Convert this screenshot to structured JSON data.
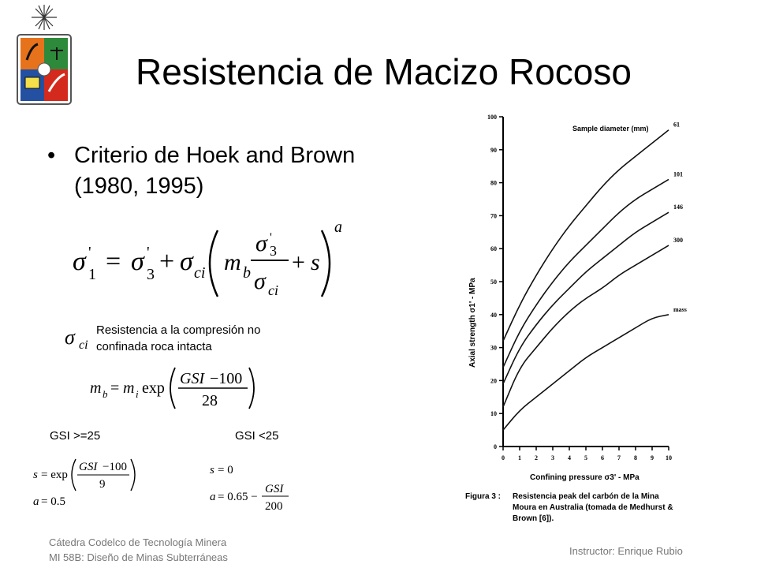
{
  "slide": {
    "title": "Resistencia de Macizo Rocoso",
    "bullet": "Criterio de Hoek and Brown (1980, 1995)",
    "sigma_ci_note_line1": "Resistencia a la compresión no",
    "sigma_ci_note_line2": "confinada roca intacta",
    "gsi_ge_25": "GSI >=25",
    "gsi_lt_25": "GSI <25",
    "footer_left_line1": "Cátedra Codelco de Tecnología Minera",
    "footer_left_line2": "MI 58B: Diseño de Minas Subterráneas",
    "footer_right": "Instructor: Enrique Rubio"
  },
  "chart_data": {
    "type": "line",
    "xlabel": "Confining pressure σ3' - MPa",
    "ylabel": "Axial strength σ1' - MPa",
    "legend_title": "Sample diameter (mm)",
    "xlim": [
      0,
      10
    ],
    "ylim": [
      0,
      100
    ],
    "x_ticks": [
      "0",
      "1",
      "2",
      "3",
      "4",
      "5",
      "6",
      "7",
      "8",
      "9",
      "10"
    ],
    "y_ticks": [
      "0",
      "10",
      "20",
      "30",
      "40",
      "50",
      "60",
      "70",
      "80",
      "90",
      "100"
    ],
    "x": [
      0,
      1,
      2,
      3,
      4,
      5,
      6,
      7,
      8,
      9,
      10
    ],
    "series": [
      {
        "name": "61",
        "values": [
          32,
          43,
          52,
          60,
          67,
          73,
          79,
          84,
          88,
          92,
          96
        ]
      },
      {
        "name": "101",
        "values": [
          24,
          35,
          43,
          50,
          56,
          61,
          66,
          71,
          75,
          78,
          81
        ]
      },
      {
        "name": "146",
        "values": [
          19,
          30,
          37,
          43,
          48,
          53,
          57,
          61,
          65,
          68,
          71
        ]
      },
      {
        "name": "300",
        "values": [
          12,
          24,
          30,
          36,
          41,
          45,
          48,
          52,
          55,
          58,
          61
        ]
      },
      {
        "name": "mass",
        "values": [
          5,
          11,
          15,
          19,
          23,
          27,
          30,
          33,
          36,
          39,
          40
        ]
      }
    ],
    "caption_label": "Figura 3 :",
    "caption_lines": [
      "Resistencia peak del carbón de la Mina",
      "Moura en Australia (tomada de Medhurst &",
      "Brown [6])."
    ]
  }
}
